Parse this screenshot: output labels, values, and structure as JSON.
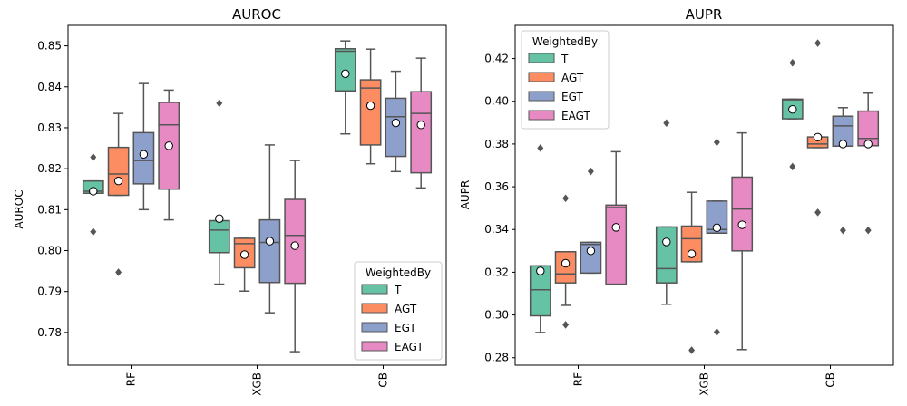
{
  "colors": {
    "T": "#66c2a5",
    "AGT": "#fc8d62",
    "EGT": "#8da0cb",
    "EAGT": "#e78ac3",
    "whisker": "#555555"
  },
  "chart_data": [
    {
      "type": "box",
      "title": "AUROC",
      "ylabel": "AUROC",
      "xlabel": "",
      "categories": [
        "RF",
        "XGB",
        "CB"
      ],
      "ylim": [
        0.772,
        0.855
      ],
      "yticks": [
        0.78,
        0.79,
        0.8,
        0.81,
        0.82,
        0.83,
        0.84,
        0.85
      ],
      "ytick_labels": [
        "0.78",
        "0.79",
        "0.80",
        "0.81",
        "0.82",
        "0.83",
        "0.84",
        "0.85"
      ],
      "legend": {
        "title": "WeightedBy",
        "placement": "lower-right",
        "entries": [
          "T",
          "AGT",
          "EGT",
          "EAGT"
        ]
      },
      "series": [
        {
          "name": "T",
          "boxes": [
            {
              "q1": 0.814,
              "med": 0.8145,
              "q3": 0.817,
              "wlo": 0.814,
              "whi": 0.817,
              "mean": 0.8145,
              "outliers": [
                0.8228,
                0.8046
              ]
            },
            {
              "q1": 0.7995,
              "med": 0.805,
              "q3": 0.8073,
              "wlo": 0.7918,
              "whi": 0.8073,
              "mean": 0.8078,
              "outliers": [
                0.836
              ]
            },
            {
              "q1": 0.839,
              "med": 0.8487,
              "q3": 0.8493,
              "wlo": 0.8285,
              "whi": 0.8512,
              "mean": 0.8432,
              "outliers": []
            }
          ]
        },
        {
          "name": "AGT",
          "boxes": [
            {
              "q1": 0.8135,
              "med": 0.8187,
              "q3": 0.8252,
              "wlo": 0.8135,
              "whi": 0.8335,
              "mean": 0.817,
              "outliers": [
                0.7947
              ]
            },
            {
              "q1": 0.7958,
              "med": 0.8017,
              "q3": 0.803,
              "wlo": 0.7901,
              "whi": 0.803,
              "mean": 0.799,
              "outliers": []
            },
            {
              "q1": 0.8258,
              "med": 0.8397,
              "q3": 0.8417,
              "wlo": 0.8212,
              "whi": 0.8492,
              "mean": 0.8354,
              "outliers": []
            }
          ]
        },
        {
          "name": "EGT",
          "boxes": [
            {
              "q1": 0.8163,
              "med": 0.822,
              "q3": 0.8288,
              "wlo": 0.81,
              "whi": 0.8408,
              "mean": 0.8235,
              "outliers": []
            },
            {
              "q1": 0.7922,
              "med": 0.802,
              "q3": 0.8075,
              "wlo": 0.7848,
              "whi": 0.8258,
              "mean": 0.8023,
              "outliers": []
            },
            {
              "q1": 0.823,
              "med": 0.8327,
              "q3": 0.8372,
              "wlo": 0.8193,
              "whi": 0.8438,
              "mean": 0.8312,
              "outliers": []
            }
          ]
        },
        {
          "name": "EAGT",
          "boxes": [
            {
              "q1": 0.815,
              "med": 0.8307,
              "q3": 0.8362,
              "wlo": 0.8075,
              "whi": 0.8392,
              "mean": 0.8256,
              "outliers": []
            },
            {
              "q1": 0.792,
              "med": 0.8037,
              "q3": 0.8125,
              "wlo": 0.7753,
              "whi": 0.822,
              "mean": 0.8012,
              "outliers": []
            },
            {
              "q1": 0.819,
              "med": 0.8335,
              "q3": 0.8388,
              "wlo": 0.8153,
              "whi": 0.847,
              "mean": 0.8307,
              "outliers": []
            }
          ]
        }
      ]
    },
    {
      "type": "box",
      "title": "AUPR",
      "ylabel": "AUPR",
      "xlabel": "",
      "categories": [
        "RF",
        "XGB",
        "CB"
      ],
      "ylim": [
        0.2765,
        0.4355
      ],
      "yticks": [
        0.28,
        0.3,
        0.32,
        0.34,
        0.36,
        0.38,
        0.4,
        0.42
      ],
      "ytick_labels": [
        "0.28",
        "0.30",
        "0.32",
        "0.34",
        "0.36",
        "0.38",
        "0.40",
        "0.42"
      ],
      "legend": {
        "title": "WeightedBy",
        "placement": "upper-left",
        "entries": [
          "T",
          "AGT",
          "EGT",
          "EAGT"
        ]
      },
      "series": [
        {
          "name": "T",
          "boxes": [
            {
              "q1": 0.2996,
              "med": 0.3118,
              "q3": 0.323,
              "wlo": 0.2918,
              "whi": 0.323,
              "mean": 0.3206,
              "outliers": [
                0.3781
              ]
            },
            {
              "q1": 0.315,
              "med": 0.3217,
              "q3": 0.3412,
              "wlo": 0.305,
              "whi": 0.3412,
              "mean": 0.3342,
              "outliers": [
                0.3898
              ]
            },
            {
              "q1": 0.3918,
              "med": 0.4007,
              "q3": 0.401,
              "wlo": 0.3918,
              "whi": 0.401,
              "mean": 0.3962,
              "outliers": [
                0.418,
                0.3694
              ]
            }
          ]
        },
        {
          "name": "AGT",
          "boxes": [
            {
              "q1": 0.315,
              "med": 0.3192,
              "q3": 0.3296,
              "wlo": 0.3045,
              "whi": 0.3296,
              "mean": 0.3242,
              "outliers": [
                0.3546,
                0.2954
              ]
            },
            {
              "q1": 0.3249,
              "med": 0.3357,
              "q3": 0.3416,
              "wlo": 0.3249,
              "whi": 0.3574,
              "mean": 0.3286,
              "outliers": [
                0.2835
              ]
            },
            {
              "q1": 0.3783,
              "med": 0.38,
              "q3": 0.3833,
              "wlo": 0.3783,
              "whi": 0.3833,
              "mean": 0.3832,
              "outliers": [
                0.4272,
                0.348
              ]
            }
          ]
        },
        {
          "name": "EGT",
          "boxes": [
            {
              "q1": 0.3196,
              "med": 0.333,
              "q3": 0.334,
              "wlo": 0.3196,
              "whi": 0.334,
              "mean": 0.33,
              "outliers": [
                0.3672
              ]
            },
            {
              "q1": 0.3383,
              "med": 0.34,
              "q3": 0.3533,
              "wlo": 0.3383,
              "whi": 0.3533,
              "mean": 0.3408,
              "outliers": [
                0.3808,
                0.292
              ]
            },
            {
              "q1": 0.379,
              "med": 0.3885,
              "q3": 0.393,
              "wlo": 0.379,
              "whi": 0.397,
              "mean": 0.38,
              "outliers": [
                0.3396
              ]
            }
          ]
        },
        {
          "name": "EAGT",
          "boxes": [
            {
              "q1": 0.3144,
              "med": 0.3503,
              "q3": 0.3514,
              "wlo": 0.3144,
              "whi": 0.3764,
              "mean": 0.341,
              "outliers": []
            },
            {
              "q1": 0.33,
              "med": 0.3496,
              "q3": 0.3645,
              "wlo": 0.2838,
              "whi": 0.3852,
              "mean": 0.3422,
              "outliers": []
            },
            {
              "q1": 0.3792,
              "med": 0.3826,
              "q3": 0.3954,
              "wlo": 0.3792,
              "whi": 0.4038,
              "mean": 0.38,
              "outliers": [
                0.3396
              ]
            }
          ]
        }
      ]
    }
  ]
}
